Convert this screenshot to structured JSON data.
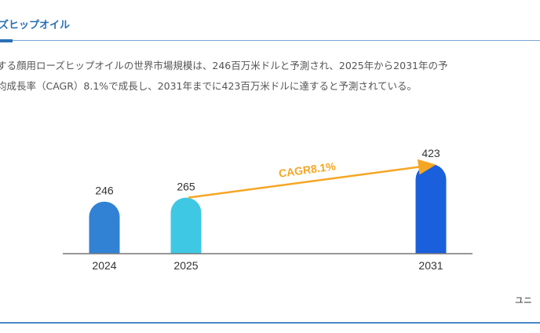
{
  "header": {
    "title": "ズヒップオイル"
  },
  "description": [
    "する顔用ローズヒップオイルの世界市場規模は、246百万米ドルと予測され、2025年から2031年の予",
    "均成長率（CAGR）8.1%で成長し、2031年までに423百万米ドルに達すると予測されている。"
  ],
  "unit_label": "ユニ",
  "chart_data": {
    "type": "bar",
    "categories": [
      "2024",
      "2025",
      "2031"
    ],
    "values": [
      246,
      265,
      423
    ],
    "colors": [
      "#3182d4",
      "#3fc8e4",
      "#1a5fdc"
    ],
    "annotation": {
      "text": "CAGR8.1%",
      "from": "2025",
      "to": "2031",
      "color": "#f5a623"
    },
    "title": "",
    "xlabel": "",
    "ylabel": ""
  }
}
